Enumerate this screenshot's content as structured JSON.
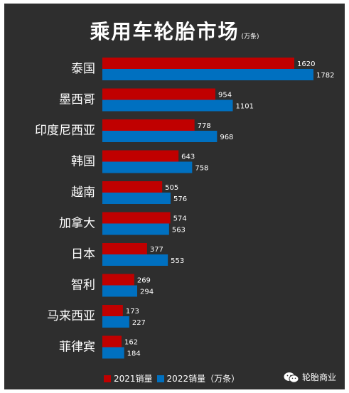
{
  "chart_data": {
    "type": "bar",
    "orientation": "horizontal",
    "title": "乘用车轮胎市场",
    "unit_note": "(万条)",
    "categories": [
      "泰国",
      "墨西哥",
      "印度尼西亚",
      "韩国",
      "越南",
      "加拿大",
      "日本",
      "智利",
      "马来西亚",
      "菲律宾"
    ],
    "series": [
      {
        "name": "2021销量",
        "color": "#c00000",
        "values": [
          1620,
          954,
          778,
          643,
          505,
          574,
          377,
          269,
          173,
          162
        ]
      },
      {
        "name": "2022销量（万条）",
        "color": "#0070c0",
        "values": [
          1782,
          1101,
          968,
          758,
          576,
          563,
          553,
          294,
          227,
          184
        ]
      }
    ],
    "xlim": [
      0,
      1800
    ],
    "grid": false,
    "legend": "bottom"
  },
  "legend": {
    "label_2021": "2021销量",
    "label_2022": "2022销量（万条）"
  },
  "brand": {
    "icon": "wechat-icon",
    "name": "轮胎商业"
  },
  "colors": {
    "background": "#2e2e2e",
    "red": "#c00000",
    "blue": "#0070c0",
    "text": "#ffffff"
  }
}
